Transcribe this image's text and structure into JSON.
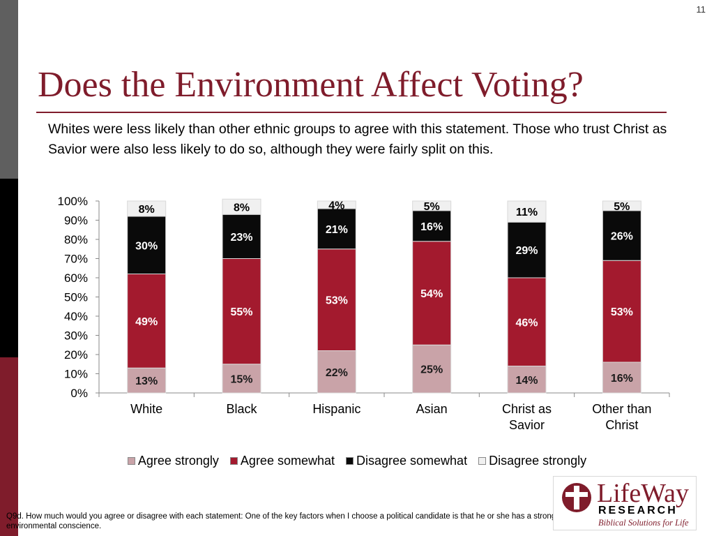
{
  "slide": {
    "page_number": "11",
    "title": "Does the Environment Affect Voting?",
    "intro": "Whites were less likely than other ethnic groups to agree with this statement.  Those who trust Christ as Savior were also less likely to do so, although they were fairly split on this.",
    "footnote": "Q9d. How much would you agree or disagree with each statement:  One of the key factors when I choose a political candidate is that he or she has a strong environmental conscience."
  },
  "logo": {
    "wordmark": "LifeWay",
    "sub": "RESEARCH",
    "tagline": "Biblical Solutions for Life",
    "icon": "lifeway-cross-icon"
  },
  "colors": {
    "accent": "#7f1c2b",
    "agree_strongly": "#c9a3a8",
    "agree_somewhat": "#a31a2e",
    "disagree_somewhat": "#0a0a0a",
    "disagree_strongly": "#f0f0f0"
  },
  "chart_data": {
    "type": "bar",
    "stacked": true,
    "percent_stacked": true,
    "categories": [
      [
        "White"
      ],
      [
        "Black"
      ],
      [
        "Hispanic"
      ],
      [
        "Asian"
      ],
      [
        "Christ as",
        "Savior"
      ],
      [
        "Other than",
        "Christ"
      ]
    ],
    "series": [
      {
        "name": "Agree strongly",
        "values": [
          13,
          15,
          22,
          25,
          14,
          16
        ],
        "labels": [
          "13%",
          "15%",
          "22%",
          "25%",
          "14%",
          "16%"
        ],
        "color": "#c9a3a8",
        "label_color": "#1a1a1a"
      },
      {
        "name": "Agree somewhat",
        "values": [
          49,
          55,
          53,
          54,
          46,
          53
        ],
        "labels": [
          "49%",
          "55%",
          "53%",
          "54%",
          "46%",
          "53%"
        ],
        "color": "#a31a2e",
        "label_color": "#ffffff"
      },
      {
        "name": "Disagree somewhat",
        "values": [
          30,
          23,
          21,
          16,
          29,
          26
        ],
        "labels": [
          "30%",
          "23%",
          "21%",
          "16%",
          "29%",
          "26%"
        ],
        "color": "#0a0a0a",
        "label_color": "#ffffff"
      },
      {
        "name": "Disagree strongly",
        "values": [
          8,
          8,
          4,
          5,
          11,
          5
        ],
        "labels": [
          "8%",
          "8%",
          "4%",
          "5%",
          "11%",
          "5%"
        ],
        "color": "#f0f0f0",
        "label_color": "#000000"
      }
    ],
    "yticks": [
      "0%",
      "10%",
      "20%",
      "30%",
      "40%",
      "50%",
      "60%",
      "70%",
      "80%",
      "90%",
      "100%"
    ],
    "ylim": [
      0,
      100
    ],
    "grid": false,
    "legend_position": "bottom"
  }
}
